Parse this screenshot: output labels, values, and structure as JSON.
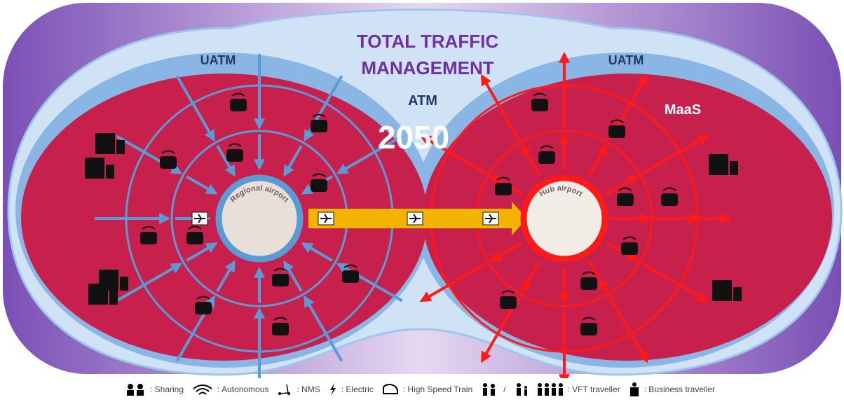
{
  "diagram": {
    "title_lines": [
      "TOTAL TRAFFIC",
      "MANAGEMENT"
    ],
    "center_label": "ATM",
    "year": "2050",
    "left": {
      "label": "UATM",
      "airport": "Regional airport"
    },
    "right": {
      "label": "UATM",
      "service": "MaaS",
      "airport": "Hub airport"
    }
  },
  "legend": [
    ": Sharing",
    ": Autonomous",
    ": NMS",
    ": Electric",
    ": High Speed Train",
    "/",
    ": VFT traveller",
    ": Business traveller"
  ]
}
